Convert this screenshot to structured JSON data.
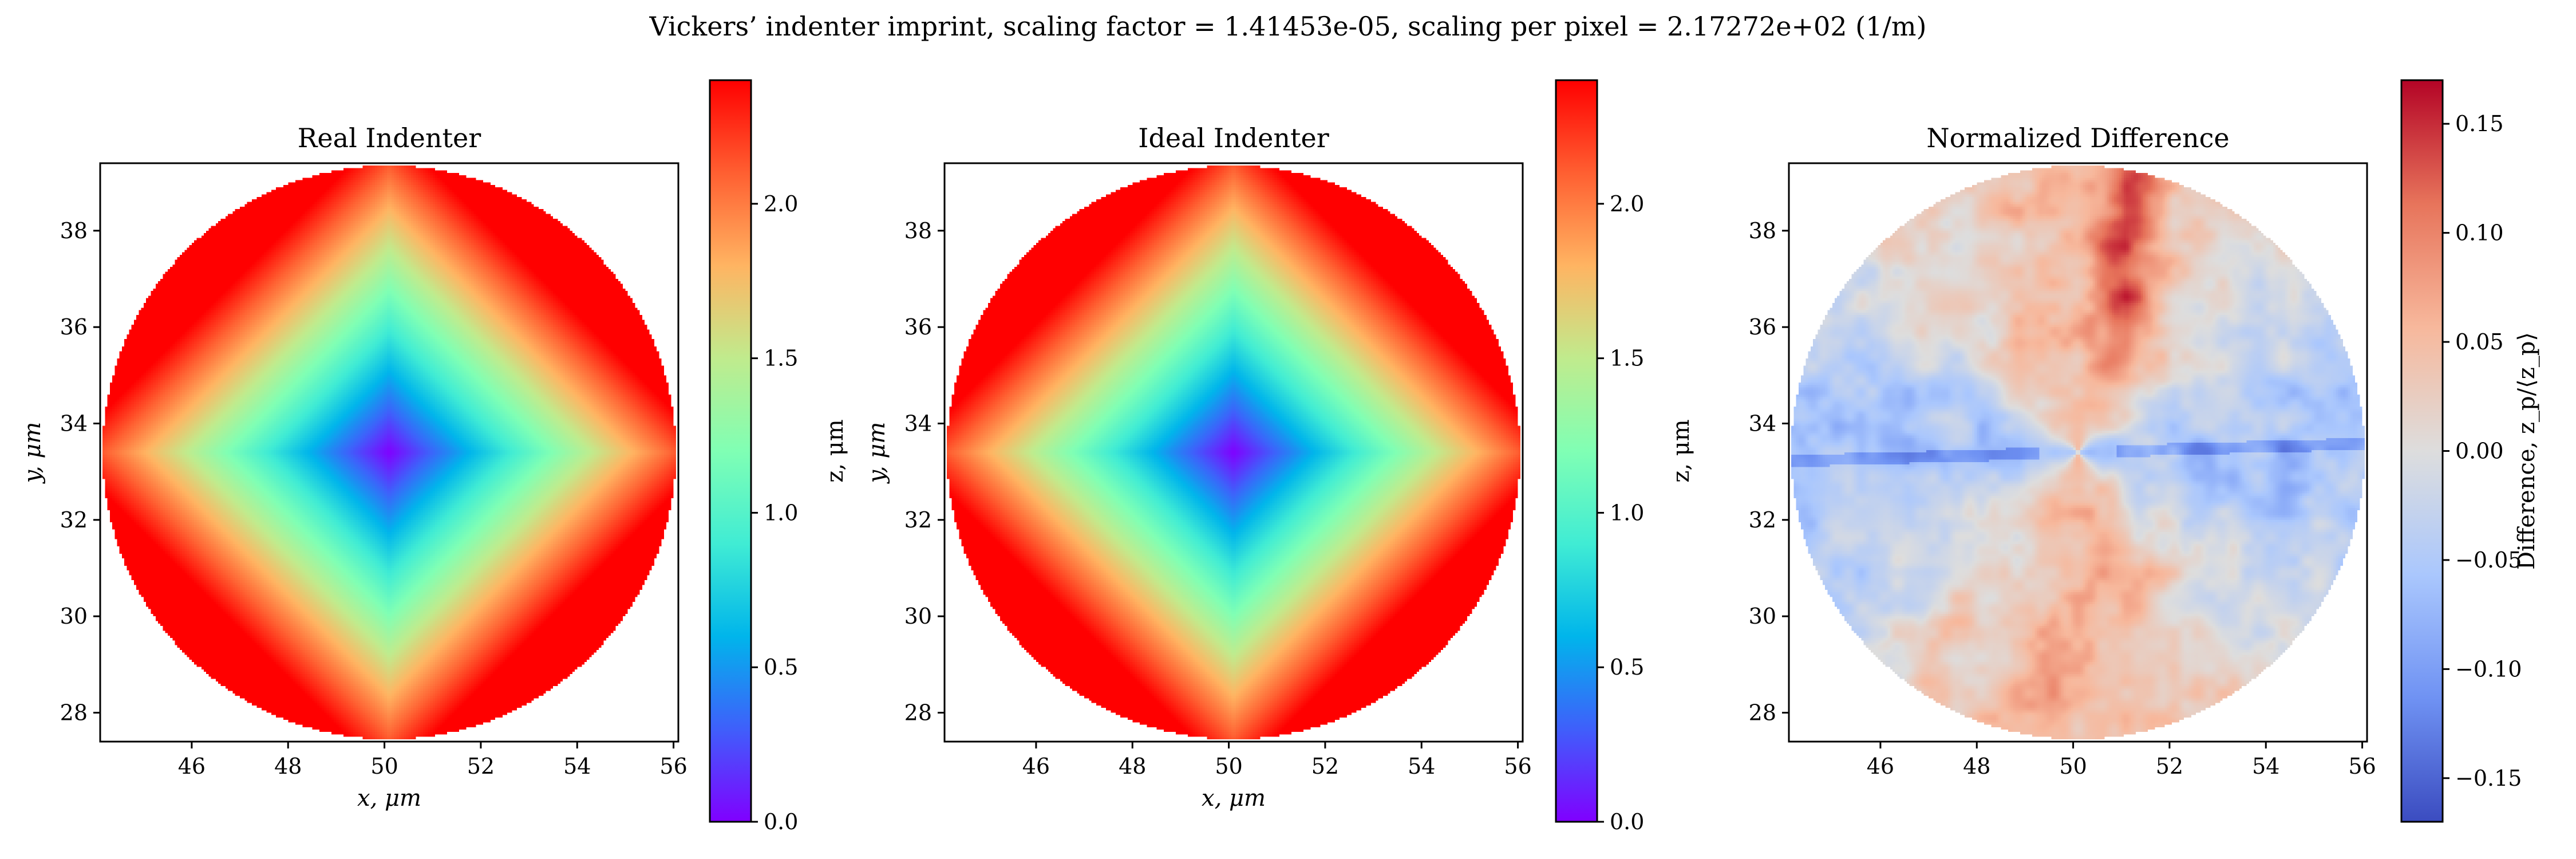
{
  "figure": {
    "suptitle": "Vickers’ indenter imprint, scaling factor = 1.41453e-05, scaling per pixel = 2.17272e+02 (1/m)"
  },
  "colors": {
    "rainbow": [
      "#8000ff",
      "#3f5ffb",
      "#00b5eb",
      "#40ecd4",
      "#80ffb4",
      "#c0eb8d",
      "#ffb462",
      "#ff5f31",
      "#ff0000"
    ],
    "coolwarm": [
      "#3b4cc0",
      "#6f92f3",
      "#aac7fd",
      "#dddddd",
      "#f7b89c",
      "#e7745b",
      "#b40426"
    ]
  },
  "chart_data": [
    {
      "type": "heatmap",
      "title": "Real Indenter",
      "xlabel": "x, μm",
      "ylabel": "y, μm",
      "xlim": [
        44.1,
        56.1
      ],
      "ylim": [
        27.4,
        39.4
      ],
      "xticks": [
        "46",
        "48",
        "50",
        "52",
        "54",
        "56"
      ],
      "yticks": [
        "28",
        "30",
        "32",
        "34",
        "36",
        "38"
      ],
      "center": [
        50.1,
        33.4
      ],
      "radius": 5.95,
      "colormap": "rainbow",
      "field": "pyramid",
      "colorbar": {
        "label": "z, μm",
        "range": [
          0.0,
          2.4
        ],
        "ticks": [
          "0.0",
          "0.5",
          "1.0",
          "1.5",
          "2.0"
        ]
      }
    },
    {
      "type": "heatmap",
      "title": "Ideal Indenter",
      "xlabel": "x, μm",
      "ylabel": "y, μm",
      "xlim": [
        44.1,
        56.1
      ],
      "ylim": [
        27.4,
        39.4
      ],
      "xticks": [
        "46",
        "48",
        "50",
        "52",
        "54",
        "56"
      ],
      "yticks": [
        "28",
        "30",
        "32",
        "34",
        "36",
        "38"
      ],
      "center": [
        50.1,
        33.4
      ],
      "radius": 5.95,
      "colormap": "rainbow",
      "field": "pyramid",
      "colorbar": {
        "label": "z, μm",
        "range": [
          0.0,
          2.4
        ],
        "ticks": [
          "0.0",
          "0.5",
          "1.0",
          "1.5",
          "2.0"
        ]
      }
    },
    {
      "type": "heatmap",
      "title": "Normalized Difference",
      "xlabel": "",
      "ylabel": "",
      "xlim": [
        44.1,
        56.1
      ],
      "ylim": [
        27.4,
        39.4
      ],
      "xticks": [
        "46",
        "48",
        "50",
        "52",
        "54",
        "56"
      ],
      "yticks": [
        "28",
        "30",
        "32",
        "34",
        "36",
        "38"
      ],
      "center": [
        50.1,
        33.4
      ],
      "radius": 5.95,
      "colormap": "coolwarm",
      "field": "difference",
      "colorbar": {
        "label": "Difference, z_p/⟨z_p⟩",
        "range": [
          -0.17,
          0.17
        ],
        "ticks": [
          "−0.15",
          "−0.10",
          "−0.05",
          "0.00",
          "0.05",
          "0.10",
          "0.15"
        ]
      }
    }
  ]
}
